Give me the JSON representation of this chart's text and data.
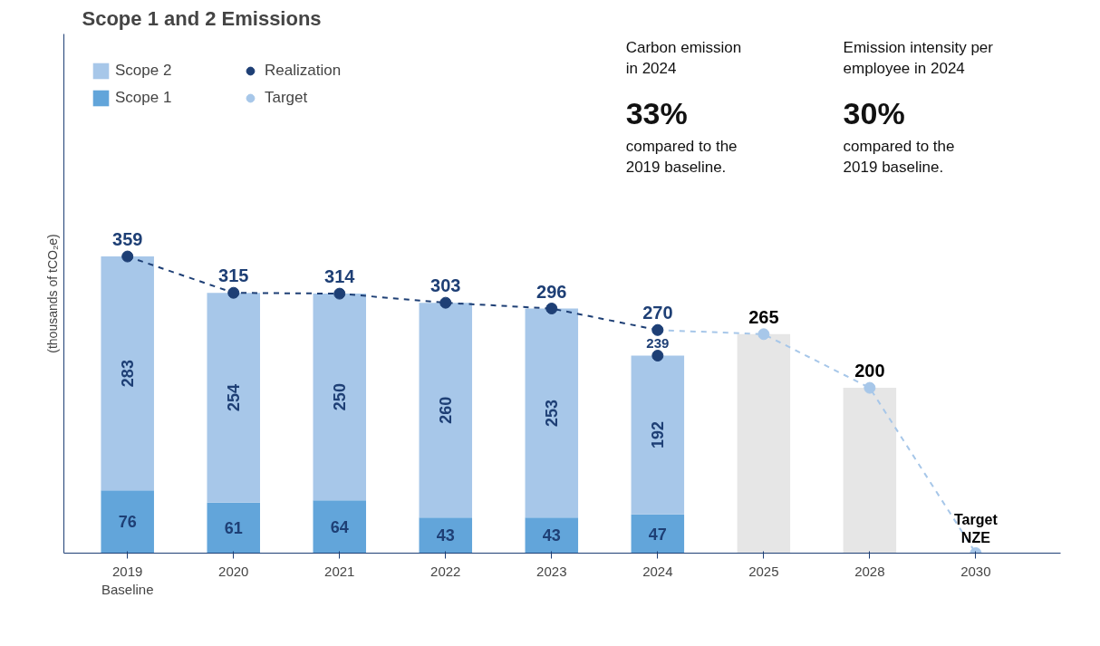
{
  "chart_data": {
    "type": "bar",
    "title": "Scope 1 and 2 Emissions",
    "ylabel": "(thousands of tCO₂e)",
    "stacked": true,
    "legend": "top left",
    "grid": false,
    "categories": [
      "2019\nBaseline",
      "2020",
      "2021",
      "2022",
      "2023",
      "2024",
      "2025",
      "2028",
      "2030"
    ],
    "series": [
      {
        "name": "Scope 1",
        "color": "#62a5da",
        "values": [
          76,
          61,
          64,
          43,
          43,
          47,
          null,
          null,
          null
        ],
        "value_labels": [
          "76",
          "61",
          "64",
          "43",
          "43",
          "47",
          null,
          null,
          null
        ]
      },
      {
        "name": "Scope 2",
        "color": "#a7c7e9",
        "values": [
          283,
          254,
          250,
          260,
          253,
          192,
          null,
          null,
          null
        ],
        "value_labels": [
          "283",
          "254",
          "250",
          "260",
          "253",
          "192",
          null,
          null,
          null
        ]
      },
      {
        "color": "#e6e6e6",
        "values": [
          null,
          null,
          null,
          null,
          null,
          null,
          265,
          200,
          null
        ]
      },
      {
        "name": "Realization",
        "type": "line",
        "color": "#1e3f75",
        "marker": "circle",
        "line_style": "dashed",
        "values": [
          359,
          315,
          314,
          303,
          296,
          270,
          null,
          null,
          null
        ],
        "value_labels": [
          "359",
          "315",
          "314",
          "303",
          "296",
          "270",
          null,
          null,
          null
        ]
      },
      {
        "type": "scatter",
        "color": "#1e3f75",
        "marker": "circle",
        "values": [
          null,
          null,
          null,
          null,
          null,
          239,
          null,
          null,
          null
        ],
        "value_labels": [
          null,
          null,
          null,
          null,
          null,
          "239",
          null,
          null,
          null
        ]
      },
      {
        "name": "Target",
        "type": "line",
        "color": "#a7c7e9",
        "marker": "circle",
        "line_style": "dashed",
        "values": [
          null,
          null,
          null,
          null,
          null,
          270,
          265,
          200,
          0
        ],
        "value_labels": [
          null,
          null,
          null,
          null,
          null,
          null,
          "265",
          "200",
          null
        ]
      }
    ],
    "annotations": [
      {
        "text": "Target\nNZE",
        "x": "2030",
        "y": 0
      },
      "Carbon emission\nin 2024",
      "33%",
      "compared to the\n2019 baseline.",
      "Emission intensity per\nemployee in 2024",
      "30%",
      "compared to the\n2019 baseline."
    ]
  }
}
